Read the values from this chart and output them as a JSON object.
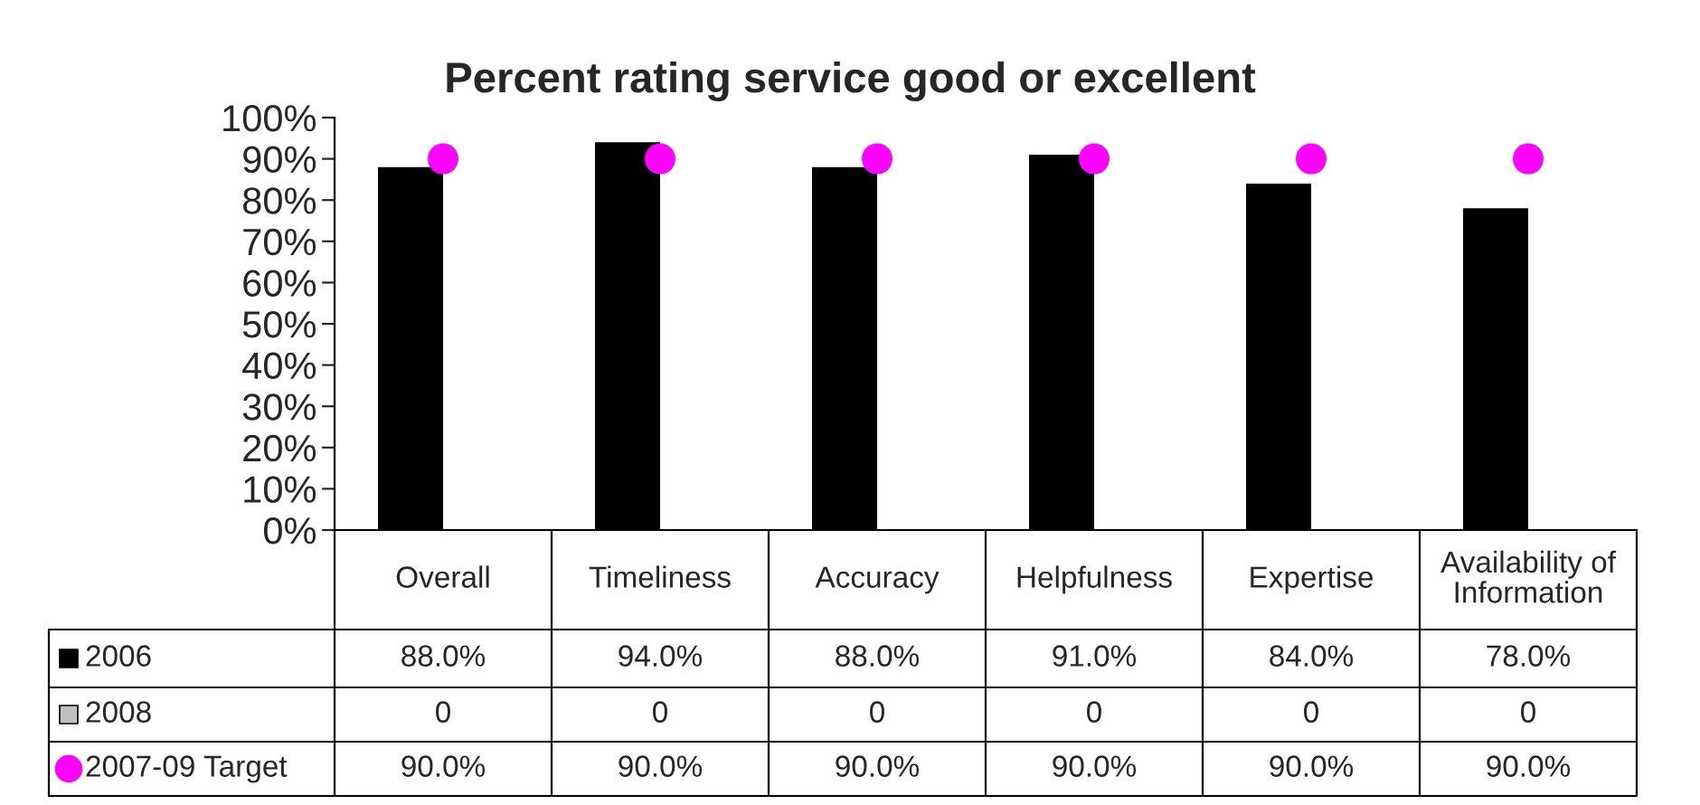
{
  "chart_data": {
    "type": "bar",
    "title": "Percent rating service good or excellent",
    "categories": [
      "Overall",
      "Timeliness",
      "Accuracy",
      "Helpfulness",
      "Expertise",
      "Availability of\nInformation"
    ],
    "series": [
      {
        "name": "2006",
        "color": "#000000",
        "values": [
          88.0,
          94.0,
          88.0,
          91.0,
          84.0,
          78.0
        ],
        "value_labels": [
          "88.0%",
          "94.0%",
          "88.0%",
          "91.0%",
          "84.0%",
          "78.0%"
        ]
      },
      {
        "name": "2008",
        "color": "#c0c0c0",
        "values": [
          0,
          0,
          0,
          0,
          0,
          0
        ],
        "value_labels": [
          "0",
          "0",
          "0",
          "0",
          "0",
          "0"
        ]
      },
      {
        "name": "2007-09 Target",
        "type": "scatter",
        "color": "#ff00ff",
        "marker": "circle",
        "x": [
          "Overall",
          "Timeliness",
          "Accuracy",
          "Helpfulness",
          "Expertise",
          "Availability of\nInformation"
        ],
        "values": [
          90.0,
          90.0,
          90.0,
          90.0,
          90.0,
          90.0
        ],
        "value_labels": [
          "90.0%",
          "90.0%",
          "90.0%",
          "90.0%",
          "90.0%",
          "90.0%"
        ]
      }
    ],
    "ylim": [
      0,
      100
    ],
    "yticks": [
      {
        "value": 0,
        "label": "0%"
      },
      {
        "value": 10,
        "label": "10%"
      },
      {
        "value": 20,
        "label": "20%"
      },
      {
        "value": 30,
        "label": "30%"
      },
      {
        "value": 40,
        "label": "40%"
      },
      {
        "value": 50,
        "label": "50%"
      },
      {
        "value": 60,
        "label": "60%"
      },
      {
        "value": 70,
        "label": "70%"
      },
      {
        "value": 80,
        "label": "80%"
      },
      {
        "value": 90,
        "label": "90%"
      },
      {
        "value": 100,
        "label": "100%"
      }
    ],
    "grid": false,
    "legend": "bottom left"
  }
}
